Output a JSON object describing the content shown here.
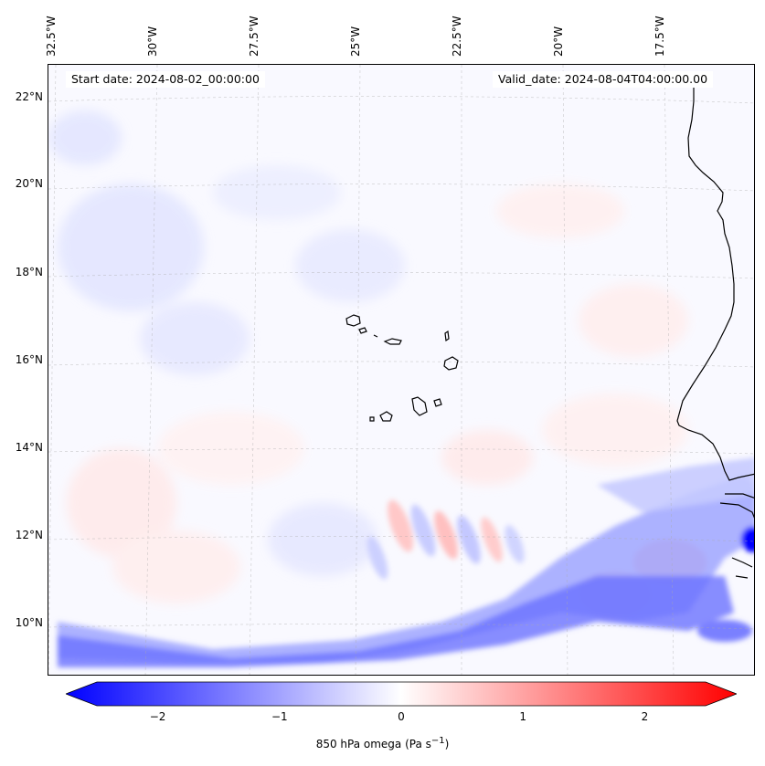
{
  "map": {
    "start_date": "Start date: 2024-08-02_00:00:00",
    "valid_date": "Valid_date: 2024-08-04T04:00:00.00",
    "lon_labels": [
      "32.5°W",
      "30°W",
      "27.5°W",
      "25°W",
      "22.5°W",
      "20°W",
      "17.5°W"
    ],
    "lat_labels": [
      "22°N",
      "20°N",
      "18°N",
      "16°N",
      "14°N",
      "12°N",
      "10°N"
    ],
    "colors": {
      "negative": "#0000ff",
      "positive": "#ff0000",
      "neutral": "#ffffff",
      "coast": "#000000",
      "grid": "#aaaaaa"
    }
  },
  "colorbar": {
    "ticks": [
      "−2",
      "−1",
      "0",
      "1",
      "2"
    ],
    "tick_values": [
      -2,
      -1,
      0,
      1,
      2
    ],
    "range": [
      -2.5,
      2.5
    ],
    "label": "850 hPa omega (Pa s",
    "label_sup": "−1",
    "label_close": ")"
  }
}
